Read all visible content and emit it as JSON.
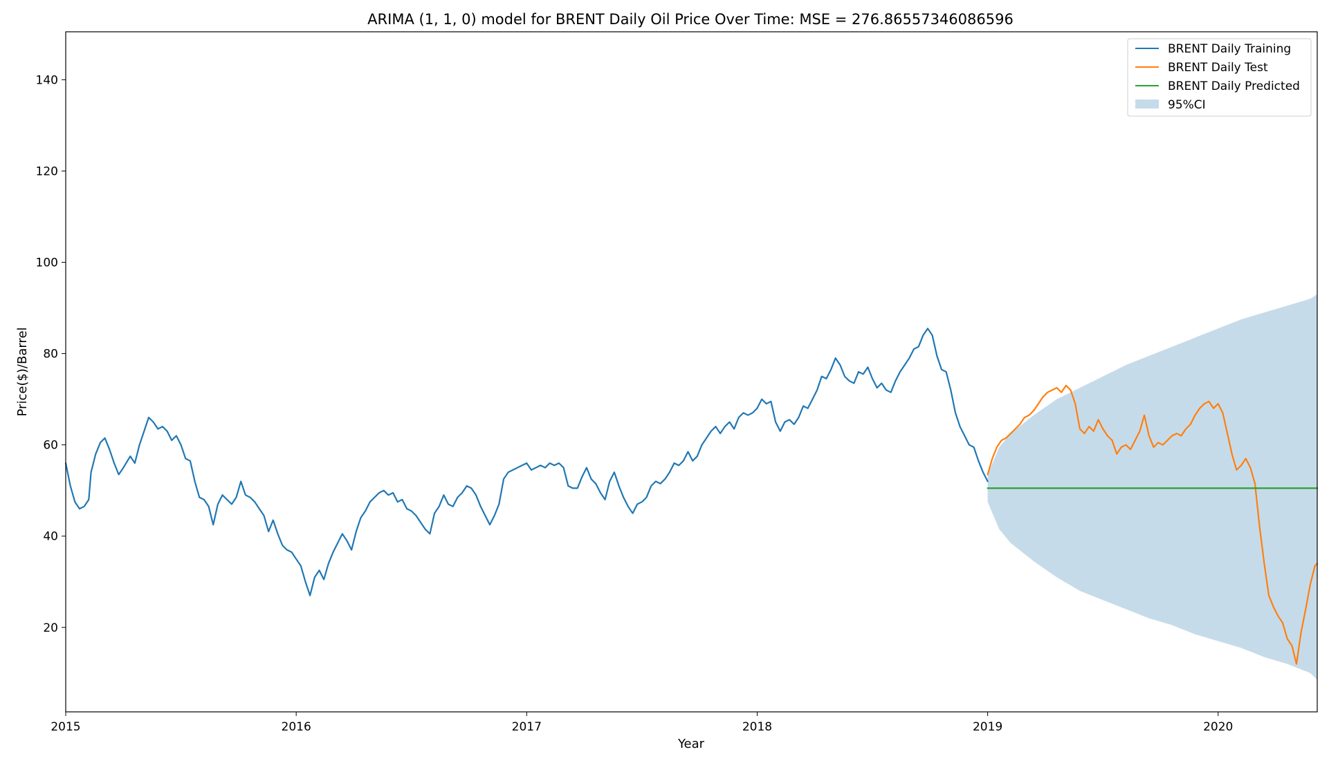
{
  "chart_data": {
    "type": "line",
    "title": "ARIMA (1, 1, 0) model for BRENT Daily Oil Price Over Time: MSE = 276.86557346086596",
    "xlabel": "Year",
    "ylabel": "Price($)/Barrel",
    "xlim": [
      2015.0,
      2020.43
    ],
    "ylim": [
      1.5,
      150.5
    ],
    "x_ticks": [
      "2015",
      "2016",
      "2017",
      "2018",
      "2019",
      "2020"
    ],
    "y_ticks": [
      20,
      40,
      60,
      80,
      100,
      120,
      140
    ],
    "grid": false,
    "legend_position": "top-right",
    "series": [
      {
        "name": "BRENT Daily Training",
        "color": "#1f77b4",
        "points": [
          [
            2015.0,
            56
          ],
          [
            2015.02,
            51
          ],
          [
            2015.04,
            47.5
          ],
          [
            2015.06,
            46
          ],
          [
            2015.08,
            46.5
          ],
          [
            2015.1,
            48
          ],
          [
            2015.11,
            54
          ],
          [
            2015.13,
            58
          ],
          [
            2015.15,
            60.5
          ],
          [
            2015.17,
            61.5
          ],
          [
            2015.19,
            59
          ],
          [
            2015.21,
            56
          ],
          [
            2015.23,
            53.5
          ],
          [
            2015.25,
            55
          ],
          [
            2015.28,
            57.5
          ],
          [
            2015.3,
            56
          ],
          [
            2015.32,
            60
          ],
          [
            2015.34,
            63
          ],
          [
            2015.36,
            66
          ],
          [
            2015.38,
            65
          ],
          [
            2015.4,
            63.5
          ],
          [
            2015.42,
            64
          ],
          [
            2015.44,
            63
          ],
          [
            2015.46,
            61
          ],
          [
            2015.48,
            62
          ],
          [
            2015.5,
            60
          ],
          [
            2015.52,
            57
          ],
          [
            2015.54,
            56.5
          ],
          [
            2015.56,
            52
          ],
          [
            2015.58,
            48.5
          ],
          [
            2015.6,
            48
          ],
          [
            2015.62,
            46.5
          ],
          [
            2015.64,
            42.5
          ],
          [
            2015.66,
            47
          ],
          [
            2015.68,
            49
          ],
          [
            2015.7,
            48
          ],
          [
            2015.72,
            47
          ],
          [
            2015.74,
            48.5
          ],
          [
            2015.76,
            52
          ],
          [
            2015.78,
            49
          ],
          [
            2015.8,
            48.5
          ],
          [
            2015.82,
            47.5
          ],
          [
            2015.84,
            46
          ],
          [
            2015.86,
            44.5
          ],
          [
            2015.88,
            41
          ],
          [
            2015.9,
            43.5
          ],
          [
            2015.92,
            40.5
          ],
          [
            2015.94,
            38
          ],
          [
            2015.96,
            37
          ],
          [
            2015.98,
            36.5
          ],
          [
            2016.0,
            35
          ],
          [
            2016.02,
            33.5
          ],
          [
            2016.04,
            30
          ],
          [
            2016.06,
            27
          ],
          [
            2016.08,
            31
          ],
          [
            2016.1,
            32.5
          ],
          [
            2016.12,
            30.5
          ],
          [
            2016.14,
            34
          ],
          [
            2016.16,
            36.5
          ],
          [
            2016.18,
            38.5
          ],
          [
            2016.2,
            40.5
          ],
          [
            2016.22,
            39
          ],
          [
            2016.24,
            37
          ],
          [
            2016.26,
            41
          ],
          [
            2016.28,
            44
          ],
          [
            2016.3,
            45.5
          ],
          [
            2016.32,
            47.5
          ],
          [
            2016.34,
            48.5
          ],
          [
            2016.36,
            49.5
          ],
          [
            2016.38,
            50
          ],
          [
            2016.4,
            49
          ],
          [
            2016.42,
            49.5
          ],
          [
            2016.44,
            47.5
          ],
          [
            2016.46,
            48
          ],
          [
            2016.48,
            46
          ],
          [
            2016.5,
            45.5
          ],
          [
            2016.52,
            44.5
          ],
          [
            2016.54,
            43
          ],
          [
            2016.56,
            41.5
          ],
          [
            2016.58,
            40.5
          ],
          [
            2016.6,
            45
          ],
          [
            2016.62,
            46.5
          ],
          [
            2016.64,
            49
          ],
          [
            2016.66,
            47
          ],
          [
            2016.68,
            46.5
          ],
          [
            2016.7,
            48.5
          ],
          [
            2016.72,
            49.5
          ],
          [
            2016.74,
            51
          ],
          [
            2016.76,
            50.5
          ],
          [
            2016.78,
            49
          ],
          [
            2016.8,
            46.5
          ],
          [
            2016.82,
            44.5
          ],
          [
            2016.84,
            42.5
          ],
          [
            2016.86,
            44.5
          ],
          [
            2016.88,
            47
          ],
          [
            2016.9,
            52.5
          ],
          [
            2016.92,
            54
          ],
          [
            2016.94,
            54.5
          ],
          [
            2016.96,
            55
          ],
          [
            2016.98,
            55.5
          ],
          [
            2017.0,
            56
          ],
          [
            2017.02,
            54.5
          ],
          [
            2017.04,
            55
          ],
          [
            2017.06,
            55.5
          ],
          [
            2017.08,
            55
          ],
          [
            2017.1,
            56
          ],
          [
            2017.12,
            55.5
          ],
          [
            2017.14,
            56
          ],
          [
            2017.16,
            55
          ],
          [
            2017.18,
            51
          ],
          [
            2017.2,
            50.5
          ],
          [
            2017.22,
            50.5
          ],
          [
            2017.24,
            53
          ],
          [
            2017.26,
            55
          ],
          [
            2017.28,
            52.5
          ],
          [
            2017.3,
            51.5
          ],
          [
            2017.32,
            49.5
          ],
          [
            2017.34,
            48
          ],
          [
            2017.36,
            52
          ],
          [
            2017.38,
            54
          ],
          [
            2017.4,
            51
          ],
          [
            2017.42,
            48.5
          ],
          [
            2017.44,
            46.5
          ],
          [
            2017.46,
            45
          ],
          [
            2017.48,
            47
          ],
          [
            2017.5,
            47.5
          ],
          [
            2017.52,
            48.5
          ],
          [
            2017.54,
            51
          ],
          [
            2017.56,
            52
          ],
          [
            2017.58,
            51.5
          ],
          [
            2017.6,
            52.5
          ],
          [
            2017.62,
            54
          ],
          [
            2017.64,
            56
          ],
          [
            2017.66,
            55.5
          ],
          [
            2017.68,
            56.5
          ],
          [
            2017.7,
            58.5
          ],
          [
            2017.72,
            56.5
          ],
          [
            2017.74,
            57.5
          ],
          [
            2017.76,
            60
          ],
          [
            2017.78,
            61.5
          ],
          [
            2017.8,
            63
          ],
          [
            2017.82,
            64
          ],
          [
            2017.84,
            62.5
          ],
          [
            2017.86,
            64
          ],
          [
            2017.88,
            65
          ],
          [
            2017.9,
            63.5
          ],
          [
            2017.92,
            66
          ],
          [
            2017.94,
            67
          ],
          [
            2017.96,
            66.5
          ],
          [
            2017.98,
            67
          ],
          [
            2018.0,
            68
          ],
          [
            2018.02,
            70
          ],
          [
            2018.04,
            69
          ],
          [
            2018.06,
            69.5
          ],
          [
            2018.08,
            65
          ],
          [
            2018.1,
            63
          ],
          [
            2018.12,
            65
          ],
          [
            2018.14,
            65.5
          ],
          [
            2018.16,
            64.5
          ],
          [
            2018.18,
            66
          ],
          [
            2018.2,
            68.5
          ],
          [
            2018.22,
            68
          ],
          [
            2018.24,
            70
          ],
          [
            2018.26,
            72
          ],
          [
            2018.28,
            75
          ],
          [
            2018.3,
            74.5
          ],
          [
            2018.32,
            76.5
          ],
          [
            2018.34,
            79
          ],
          [
            2018.36,
            77.5
          ],
          [
            2018.38,
            75
          ],
          [
            2018.4,
            74
          ],
          [
            2018.42,
            73.5
          ],
          [
            2018.44,
            76
          ],
          [
            2018.46,
            75.5
          ],
          [
            2018.48,
            77
          ],
          [
            2018.5,
            74.5
          ],
          [
            2018.52,
            72.5
          ],
          [
            2018.54,
            73.5
          ],
          [
            2018.56,
            72
          ],
          [
            2018.58,
            71.5
          ],
          [
            2018.6,
            74
          ],
          [
            2018.62,
            76
          ],
          [
            2018.64,
            77.5
          ],
          [
            2018.66,
            79
          ],
          [
            2018.68,
            81
          ],
          [
            2018.7,
            81.5
          ],
          [
            2018.72,
            84
          ],
          [
            2018.74,
            85.5
          ],
          [
            2018.76,
            84
          ],
          [
            2018.78,
            79.5
          ],
          [
            2018.8,
            76.5
          ],
          [
            2018.82,
            76
          ],
          [
            2018.84,
            72
          ],
          [
            2018.86,
            67
          ],
          [
            2018.88,
            64
          ],
          [
            2018.9,
            62
          ],
          [
            2018.92,
            60
          ],
          [
            2018.94,
            59.5
          ],
          [
            2018.96,
            56.5
          ],
          [
            2018.98,
            54
          ],
          [
            2019.0,
            52
          ]
        ]
      },
      {
        "name": "BRENT Daily Test",
        "color": "#ff7f0e",
        "points": [
          [
            2019.0,
            53.5
          ],
          [
            2019.02,
            57
          ],
          [
            2019.04,
            59.5
          ],
          [
            2019.06,
            61
          ],
          [
            2019.08,
            61.5
          ],
          [
            2019.1,
            62.5
          ],
          [
            2019.12,
            63.5
          ],
          [
            2019.14,
            64.5
          ],
          [
            2019.16,
            66
          ],
          [
            2019.18,
            66.5
          ],
          [
            2019.2,
            67.5
          ],
          [
            2019.22,
            69
          ],
          [
            2019.24,
            70.5
          ],
          [
            2019.26,
            71.5
          ],
          [
            2019.28,
            72
          ],
          [
            2019.3,
            72.5
          ],
          [
            2019.32,
            71.5
          ],
          [
            2019.34,
            73
          ],
          [
            2019.36,
            72
          ],
          [
            2019.38,
            69
          ],
          [
            2019.4,
            63.5
          ],
          [
            2019.42,
            62.5
          ],
          [
            2019.44,
            64
          ],
          [
            2019.46,
            63
          ],
          [
            2019.48,
            65.5
          ],
          [
            2019.5,
            63.5
          ],
          [
            2019.52,
            62
          ],
          [
            2019.54,
            61
          ],
          [
            2019.56,
            58
          ],
          [
            2019.58,
            59.5
          ],
          [
            2019.6,
            60
          ],
          [
            2019.62,
            59
          ],
          [
            2019.64,
            61
          ],
          [
            2019.66,
            63
          ],
          [
            2019.68,
            66.5
          ],
          [
            2019.7,
            62
          ],
          [
            2019.72,
            59.5
          ],
          [
            2019.74,
            60.5
          ],
          [
            2019.76,
            60
          ],
          [
            2019.78,
            61
          ],
          [
            2019.8,
            62
          ],
          [
            2019.82,
            62.5
          ],
          [
            2019.84,
            62
          ],
          [
            2019.86,
            63.5
          ],
          [
            2019.88,
            64.5
          ],
          [
            2019.9,
            66.5
          ],
          [
            2019.92,
            68
          ],
          [
            2019.94,
            69
          ],
          [
            2019.96,
            69.5
          ],
          [
            2019.98,
            68
          ],
          [
            2020.0,
            69
          ],
          [
            2020.02,
            67
          ],
          [
            2020.04,
            62.5
          ],
          [
            2020.06,
            58
          ],
          [
            2020.08,
            54.5
          ],
          [
            2020.1,
            55.5
          ],
          [
            2020.12,
            57
          ],
          [
            2020.14,
            55
          ],
          [
            2020.16,
            51.5
          ],
          [
            2020.18,
            42
          ],
          [
            2020.2,
            34
          ],
          [
            2020.22,
            27
          ],
          [
            2020.24,
            24.5
          ],
          [
            2020.26,
            22.5
          ],
          [
            2020.28,
            21
          ],
          [
            2020.3,
            17.5
          ],
          [
            2020.32,
            16
          ],
          [
            2020.34,
            12
          ],
          [
            2020.36,
            19
          ],
          [
            2020.38,
            24
          ],
          [
            2020.4,
            29.5
          ],
          [
            2020.42,
            33.5
          ],
          [
            2020.43,
            34
          ]
        ]
      },
      {
        "name": "BRENT Daily Predicted",
        "color": "#2ca02c",
        "points": [
          [
            2019.0,
            50.5
          ],
          [
            2020.43,
            50.5
          ]
        ]
      }
    ],
    "confidence_interval": {
      "name": "95%CI",
      "color": "#c6dbea",
      "x": [
        2019.0,
        2019.05,
        2019.1,
        2019.2,
        2019.3,
        2019.4,
        2019.5,
        2019.6,
        2019.7,
        2019.8,
        2019.9,
        2020.0,
        2020.1,
        2020.2,
        2020.3,
        2020.4,
        2020.43
      ],
      "upper": [
        53.5,
        59.5,
        62.5,
        66.5,
        70,
        72.5,
        75,
        77.5,
        79.5,
        81.5,
        83.5,
        85.5,
        87.5,
        89,
        90.5,
        92,
        93
      ],
      "lower": [
        47.5,
        41.5,
        38.5,
        34.5,
        31,
        28,
        26,
        24,
        22,
        20.5,
        18.5,
        17,
        15.5,
        13.5,
        12,
        10,
        8.5
      ]
    }
  }
}
